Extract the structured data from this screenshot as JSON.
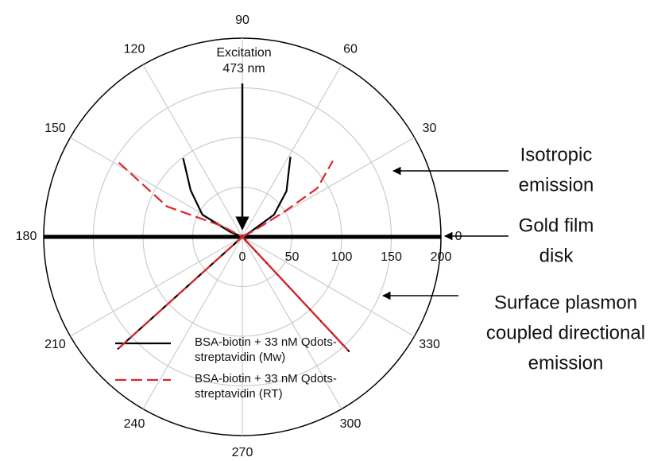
{
  "chart_data": {
    "type": "polar",
    "rlim": [
      0,
      200
    ],
    "rticks": [
      0,
      50,
      100,
      150,
      200
    ],
    "thetaticks": [
      0,
      30,
      60,
      90,
      120,
      150,
      180,
      210,
      240,
      270,
      300,
      330
    ],
    "grid": true,
    "series": [
      {
        "name": "BSA-biotin + 33 nM Qdots-streptavidin (Mw)",
        "color": "#000000",
        "dash": false,
        "theta": [
          127,
          138,
          151,
          158,
          180,
          222,
          180,
          313,
          0,
          31,
          35,
          46,
          59
        ],
        "r": [
          99,
          70,
          46,
          13,
          0,
          169,
          0,
          158,
          0,
          9,
          39,
          64,
          94
        ]
      },
      {
        "name": "BSA-biotin + 33 nM Qdots-streptavidin (RT)",
        "color": "#e0252a",
        "dash": true,
        "theta": [
          149,
          158,
          157,
          152,
          180,
          222,
          180,
          313,
          0,
          28,
          31,
          33,
          40
        ],
        "r": [
          145,
          82,
          57,
          23,
          0,
          170,
          0,
          156,
          0,
          14,
          51,
          90,
          119
        ]
      }
    ],
    "annotations": [
      {
        "lines": [
          "Excitation",
          "473 nm"
        ]
      },
      {
        "lines": [
          "Isotropic",
          "emission"
        ]
      },
      {
        "lines": [
          "Gold film",
          "disk"
        ]
      },
      {
        "lines": [
          "Surface plasmon",
          "coupled directional",
          "emission"
        ]
      }
    ]
  }
}
